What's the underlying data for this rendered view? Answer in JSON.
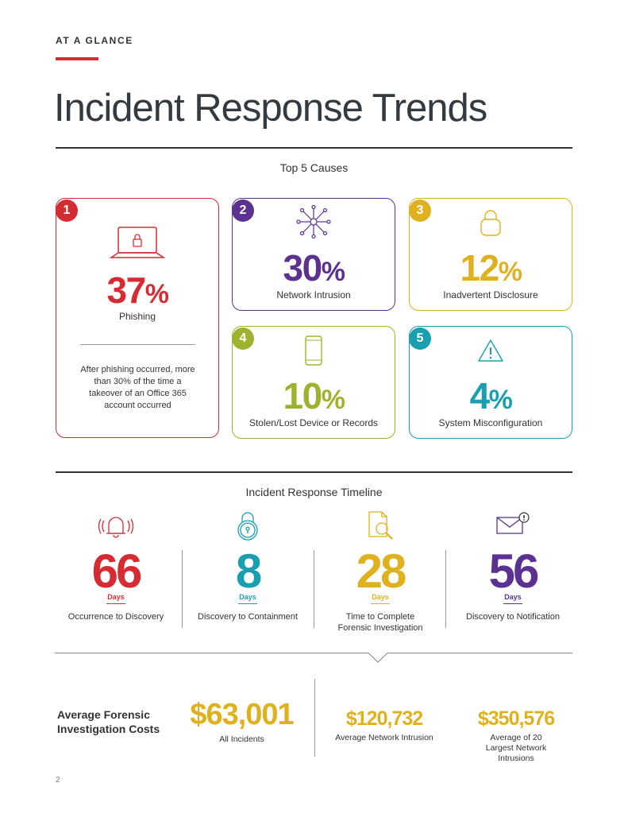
{
  "header": {
    "eyebrow": "AT A GLANCE",
    "title": "Incident Response Trends"
  },
  "colors": {
    "red": "#d52b32",
    "purple": "#5b3291",
    "gold": "#e0b11e",
    "green": "#9fb22f",
    "teal": "#1a9fb1",
    "cost_gold": "#e0b11e"
  },
  "causes": {
    "title": "Top 5 Causes",
    "items": [
      {
        "rank": "1",
        "value": "37",
        "unit": "%",
        "label": "Phishing",
        "icon": "laptop-lock-icon",
        "note": "After phishing occurred, more than 30% of the time a takeover of an Office 365 account occurred"
      },
      {
        "rank": "2",
        "value": "30",
        "unit": "%",
        "label": "Network Intrusion",
        "icon": "network-icon"
      },
      {
        "rank": "3",
        "value": "12",
        "unit": "%",
        "label": "Inadvertent Disclosure",
        "icon": "padlock-icon"
      },
      {
        "rank": "4",
        "value": "10",
        "unit": "%",
        "label": "Stolen/Lost Device or Records",
        "icon": "smartphone-icon"
      },
      {
        "rank": "5",
        "value": "4",
        "unit": "%",
        "label": "System Misconfiguration",
        "icon": "warning-icon"
      }
    ]
  },
  "timeline": {
    "title": "Incident Response Timeline",
    "items": [
      {
        "value": "66",
        "unit": "Days",
        "label": "Occurrence to Discovery",
        "icon": "alarm-bell-icon"
      },
      {
        "value": "8",
        "unit": "Days",
        "label": "Discovery to Containment",
        "icon": "lock-icon"
      },
      {
        "value": "28",
        "unit": "Days",
        "label": "Time to Complete Forensic Investigation",
        "icon": "document-search-icon"
      },
      {
        "value": "56",
        "unit": "Days",
        "label": "Discovery to Notification",
        "icon": "envelope-alert-icon"
      }
    ]
  },
  "costs": {
    "heading": "Average Forensic Investigation Costs",
    "items": [
      {
        "amount": "$63,001",
        "label": "All Incidents"
      },
      {
        "amount": "$120,732",
        "label": "Average Network Intrusion"
      },
      {
        "amount": "$350,576",
        "label": "Average of 20 Largest Network Intrusions"
      }
    ]
  },
  "footer": {
    "page_number": "2"
  }
}
